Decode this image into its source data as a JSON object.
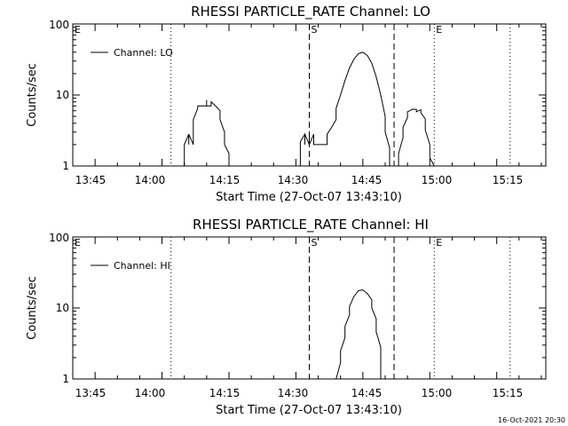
{
  "chart_data": [
    {
      "type": "line",
      "title": "RHESSI PARTICLE_RATE Channel: LO",
      "xlabel": "Start Time (27-Oct-07 13:43:10)",
      "ylabel": "Counts/sec",
      "yscale": "log",
      "ylim": [
        1,
        100
      ],
      "xlim": [
        "13:40",
        "15:26"
      ],
      "xticks": [
        "13:45",
        "14:00",
        "14:15",
        "14:30",
        "14:45",
        "15:00",
        "15:15"
      ],
      "yticks": [
        "1",
        "10",
        "100"
      ],
      "legend": "top-left",
      "grid": false,
      "markers": [
        {
          "label": "E",
          "time": "13:40",
          "style": "dotted"
        },
        {
          "label": "",
          "time": "14:02",
          "style": "dotted"
        },
        {
          "label": "S",
          "time": "14:33",
          "style": "dashed"
        },
        {
          "label": "",
          "time": "14:52",
          "style": "dashed"
        },
        {
          "label": "E",
          "time": "15:01",
          "style": "dotted"
        },
        {
          "label": "",
          "time": "15:18",
          "style": "dotted"
        }
      ],
      "series": [
        {
          "name": "Channel: LO",
          "x": [
            "14:05",
            "14:05",
            "14:06",
            "14:06",
            "14:06",
            "14:07",
            "14:07",
            "14:07",
            "14:08",
            "14:08",
            "14:09",
            "14:10",
            "14:10",
            "14:10",
            "14:11",
            "14:11",
            "14:12",
            "14:12",
            "14:12",
            "14:13",
            "14:13",
            "14:14",
            "14:14",
            "14:15",
            "14:15",
            "14:15"
          ],
          "y": [
            1.0,
            2.0,
            2.8,
            2.0,
            2.8,
            2.0,
            2.8,
            4.5,
            6.5,
            7.0,
            7.0,
            7.0,
            8.5,
            7.0,
            7.0,
            8.0,
            7.0,
            7.0,
            7.0,
            6.0,
            4.5,
            3.0,
            2.0,
            1.5,
            1.0,
            1.0
          ]
        },
        {
          "name": "Channel: LO",
          "x": [
            "14:31",
            "14:31",
            "14:32",
            "14:32",
            "14:32",
            "14:33",
            "14:33",
            "14:33",
            "14:34",
            "14:34",
            "14:35",
            "14:36",
            "14:36",
            "14:37",
            "14:37",
            "14:38",
            "14:39",
            "14:39",
            "14:40",
            "14:41",
            "14:42",
            "14:43",
            "14:44",
            "14:45",
            "14:46",
            "14:47",
            "14:48",
            "14:49",
            "14:50",
            "14:50",
            "14:51",
            "14:51",
            "14:51"
          ],
          "y": [
            1.0,
            2.2,
            2.8,
            2.0,
            2.8,
            2.0,
            2.8,
            2.0,
            2.8,
            2.0,
            2.0,
            2.0,
            2.0,
            2.0,
            2.8,
            3.5,
            4.5,
            6.5,
            10.0,
            16.0,
            24.0,
            32.0,
            38.0,
            40.0,
            36.0,
            28.0,
            18.0,
            10.0,
            5.0,
            3.0,
            1.8,
            1.2,
            1.0
          ]
        },
        {
          "name": "Channel: LO",
          "x": [
            "14:53",
            "14:53",
            "14:54",
            "14:54",
            "14:55",
            "14:55",
            "14:56",
            "14:56",
            "14:57",
            "14:57",
            "14:58",
            "14:58",
            "14:59",
            "14:59",
            "15:00",
            "15:00",
            "15:01"
          ],
          "y": [
            1.0,
            1.5,
            2.5,
            3.5,
            4.8,
            5.8,
            6.2,
            6.3,
            6.3,
            5.8,
            6.2,
            5.6,
            4.6,
            3.2,
            2.0,
            1.3,
            1.0
          ]
        }
      ]
    },
    {
      "type": "line",
      "title": "RHESSI PARTICLE_RATE Channel: HI",
      "xlabel": "Start Time (27-Oct-07 13:43:10)",
      "ylabel": "Counts/sec",
      "yscale": "log",
      "ylim": [
        1,
        100
      ],
      "xlim": [
        "13:40",
        "15:26"
      ],
      "xticks": [
        "13:45",
        "14:00",
        "14:15",
        "14:30",
        "14:45",
        "15:00",
        "15:15"
      ],
      "yticks": [
        "1",
        "10",
        "100"
      ],
      "legend": "top-left",
      "grid": false,
      "markers": [
        {
          "label": "E",
          "time": "13:40",
          "style": "dotted"
        },
        {
          "label": "",
          "time": "14:02",
          "style": "dotted"
        },
        {
          "label": "S",
          "time": "14:33",
          "style": "dashed"
        },
        {
          "label": "",
          "time": "14:52",
          "style": "dashed"
        },
        {
          "label": "E",
          "time": "15:01",
          "style": "dotted"
        },
        {
          "label": "",
          "time": "15:18",
          "style": "dotted"
        }
      ],
      "series": [
        {
          "name": "Channel: HI",
          "x": [
            "14:39",
            "14:40",
            "14:40",
            "14:41",
            "14:41",
            "14:42",
            "14:42",
            "14:43",
            "14:44",
            "14:45",
            "14:46",
            "14:47",
            "14:47",
            "14:48",
            "14:48",
            "14:49",
            "14:49",
            "14:49"
          ],
          "y": [
            1.0,
            1.7,
            2.5,
            3.8,
            5.5,
            8.0,
            10.5,
            14.5,
            17.5,
            18.0,
            16.0,
            13.0,
            10.0,
            7.0,
            4.6,
            2.8,
            1.6,
            1.0
          ]
        }
      ]
    }
  ],
  "timestamp": "16-Oct-2021 20:30"
}
